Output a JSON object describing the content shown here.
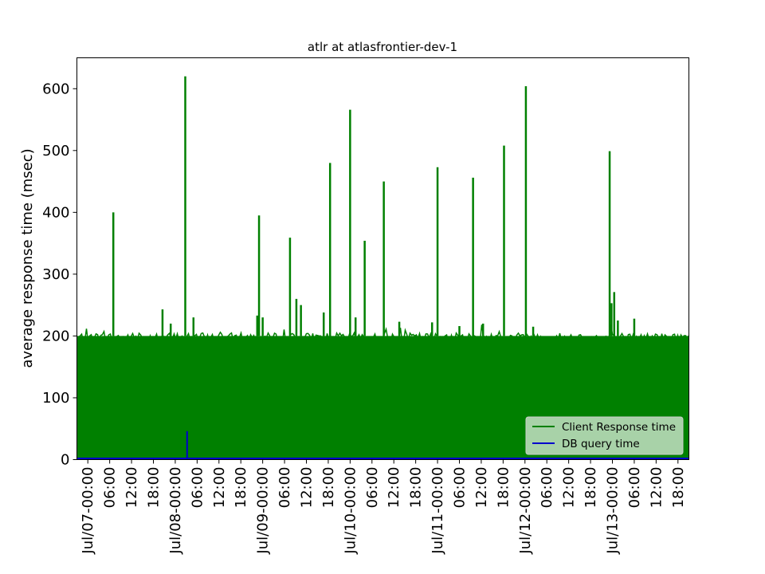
{
  "chart_data": {
    "type": "line",
    "title": "atlr at atlasfrontier-dev-1",
    "xlabel": "",
    "ylabel": "average response time (msec)",
    "ylim": [
      0,
      650
    ],
    "yticks": [
      0,
      100,
      200,
      300,
      400,
      500,
      600
    ],
    "xlim": [
      "2020-07-06T21:00",
      "2020-07-13T21:00"
    ],
    "xtick_labels": [
      "Jul/07-00:00",
      "06:00",
      "12:00",
      "18:00",
      "Jul/08-00:00",
      "06:00",
      "12:00",
      "18:00",
      "Jul/09-00:00",
      "06:00",
      "12:00",
      "18:00",
      "Jul/10-00:00",
      "06:00",
      "12:00",
      "18:00",
      "Jul/11-00:00",
      "06:00",
      "12:00",
      "18:00",
      "Jul/12-00:00",
      "06:00",
      "12:00",
      "18:00",
      "Jul/13-00:00",
      "06:00",
      "12:00",
      "18:00"
    ],
    "legend_position": "lower-right",
    "grid": false,
    "series": [
      {
        "name": "Client Response time",
        "color": "#008000",
        "baseline_range": [
          0,
          200
        ],
        "typical_max": 205,
        "spikes": [
          {
            "x": "2020-07-07T07:00",
            "y": 400
          },
          {
            "x": "2020-07-07T20:30",
            "y": 243
          },
          {
            "x": "2020-07-07T22:45",
            "y": 220
          },
          {
            "x": "2020-07-08T02:45",
            "y": 620
          },
          {
            "x": "2020-07-08T05:00",
            "y": 230
          },
          {
            "x": "2020-07-08T22:30",
            "y": 233
          },
          {
            "x": "2020-07-08T23:00",
            "y": 395
          },
          {
            "x": "2020-07-09T00:00",
            "y": 230
          },
          {
            "x": "2020-07-09T07:30",
            "y": 359
          },
          {
            "x": "2020-07-09T09:15",
            "y": 260
          },
          {
            "x": "2020-07-09T10:30",
            "y": 250
          },
          {
            "x": "2020-07-09T16:45",
            "y": 238
          },
          {
            "x": "2020-07-09T18:30",
            "y": 480
          },
          {
            "x": "2020-07-10T00:00",
            "y": 566
          },
          {
            "x": "2020-07-10T01:30",
            "y": 230
          },
          {
            "x": "2020-07-10T04:00",
            "y": 354
          },
          {
            "x": "2020-07-10T09:15",
            "y": 450
          },
          {
            "x": "2020-07-10T13:30",
            "y": 223
          },
          {
            "x": "2020-07-10T22:30",
            "y": 222
          },
          {
            "x": "2020-07-11T00:00",
            "y": 473
          },
          {
            "x": "2020-07-11T06:00",
            "y": 216
          },
          {
            "x": "2020-07-11T09:45",
            "y": 456
          },
          {
            "x": "2020-07-11T12:30",
            "y": 220
          },
          {
            "x": "2020-07-11T18:15",
            "y": 508
          },
          {
            "x": "2020-07-12T00:15",
            "y": 604
          },
          {
            "x": "2020-07-12T02:15",
            "y": 215
          },
          {
            "x": "2020-07-12T23:15",
            "y": 499
          },
          {
            "x": "2020-07-12T23:45",
            "y": 253
          },
          {
            "x": "2020-07-13T00:30",
            "y": 271
          },
          {
            "x": "2020-07-13T01:30",
            "y": 225
          },
          {
            "x": "2020-07-13T06:00",
            "y": 228
          }
        ]
      },
      {
        "name": "DB query time",
        "color": "#0000cc",
        "typical_value": 2,
        "spikes": [
          {
            "x": "2020-07-08T03:15",
            "y": 46
          }
        ]
      }
    ]
  }
}
